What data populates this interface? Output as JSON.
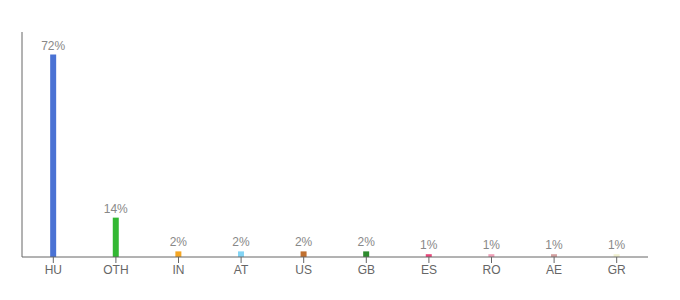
{
  "chart_data": {
    "type": "bar",
    "categories": [
      "HU",
      "OTH",
      "IN",
      "AT",
      "US",
      "GB",
      "ES",
      "RO",
      "AE",
      "GR"
    ],
    "values": [
      72,
      14,
      2,
      2,
      2,
      2,
      1,
      1,
      1,
      1
    ],
    "value_labels": [
      "72%",
      "14%",
      "2%",
      "2%",
      "2%",
      "2%",
      "1%",
      "1%",
      "1%",
      "1%"
    ],
    "colors": [
      "#4a72d4",
      "#33b833",
      "#f5a623",
      "#82d4f5",
      "#c07030",
      "#2e8b2e",
      "#e8477a",
      "#f0a0b8",
      "#d4a0a0",
      "#f0f0d0"
    ],
    "ylim": [
      0,
      80
    ],
    "grid": false,
    "data_labels": true,
    "tick_labels": "x"
  }
}
